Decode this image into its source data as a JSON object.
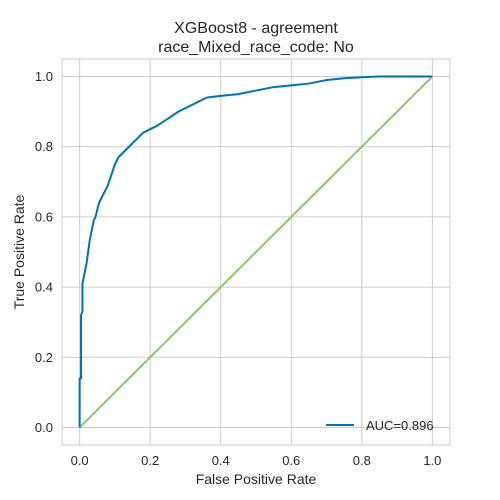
{
  "chart_data": {
    "type": "line",
    "title": "XGBoost8 - agreement",
    "subtitle": "race_Mixed_race_code: No",
    "xlabel": "False Positive Rate",
    "ylabel": "True Positive Rate",
    "xlim": [
      -0.05,
      1.05
    ],
    "ylim": [
      -0.05,
      1.05
    ],
    "xticks": [
      0.0,
      0.2,
      0.4,
      0.6,
      0.8,
      1.0
    ],
    "yticks": [
      0.0,
      0.2,
      0.4,
      0.6,
      0.8,
      1.0
    ],
    "xtick_labels": [
      "0.0",
      "0.2",
      "0.4",
      "0.6",
      "0.8",
      "1.0"
    ],
    "ytick_labels": [
      "0.0",
      "0.2",
      "0.4",
      "0.6",
      "0.8",
      "1.0"
    ],
    "grid": true,
    "legend_position": "lower-right",
    "series": [
      {
        "name": "AUC=0.896",
        "color": "#0072b2",
        "x": [
          0.0,
          0.0,
          0.004,
          0.004,
          0.008,
          0.008,
          0.012,
          0.016,
          0.02,
          0.024,
          0.028,
          0.032,
          0.036,
          0.04,
          0.045,
          0.05,
          0.055,
          0.06,
          0.065,
          0.07,
          0.08,
          0.09,
          0.1,
          0.11,
          0.12,
          0.13,
          0.14,
          0.15,
          0.16,
          0.18,
          0.2,
          0.22,
          0.25,
          0.28,
          0.32,
          0.36,
          0.4,
          0.45,
          0.5,
          0.55,
          0.6,
          0.65,
          0.7,
          0.75,
          0.8,
          0.85,
          0.9,
          0.95,
          1.0
        ],
        "y": [
          0.0,
          0.14,
          0.14,
          0.32,
          0.33,
          0.41,
          0.43,
          0.45,
          0.47,
          0.5,
          0.53,
          0.55,
          0.57,
          0.59,
          0.6,
          0.62,
          0.64,
          0.65,
          0.66,
          0.67,
          0.69,
          0.72,
          0.75,
          0.77,
          0.78,
          0.79,
          0.8,
          0.81,
          0.82,
          0.84,
          0.85,
          0.86,
          0.88,
          0.9,
          0.92,
          0.94,
          0.945,
          0.95,
          0.96,
          0.97,
          0.975,
          0.98,
          0.99,
          0.995,
          0.998,
          1.0,
          1.0,
          1.0,
          1.0
        ]
      },
      {
        "color": "#8fc16f",
        "x": [
          0.0,
          1.0
        ],
        "y": [
          0.0,
          1.0
        ]
      }
    ]
  }
}
